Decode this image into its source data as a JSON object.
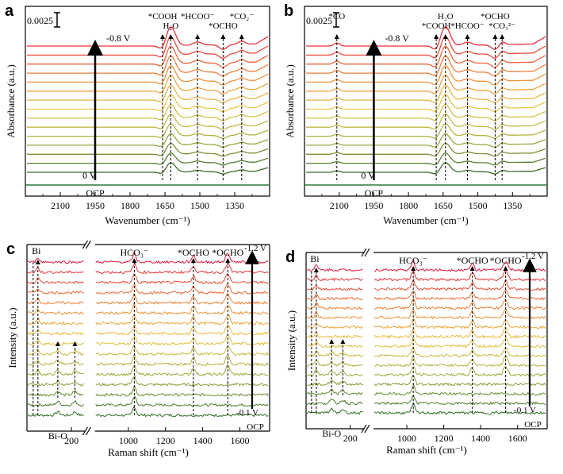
{
  "colors": {
    "ir_top": "#e8303c",
    "ir_bottom": "#3a6b28",
    "raman_top": "#e01c3c",
    "raman_bottom": "#2e6b22",
    "ocp_line": "#2d7a3e",
    "arrow": "#000000"
  },
  "chart_data": [
    {
      "id": "a",
      "panel_label": "a",
      "type": "line",
      "subtype": "stacked spectra",
      "xlabel": "Wavenumber (cm⁻¹)",
      "ylabel": "Absorbance (a.u.)",
      "x_reversed": true,
      "xlim": [
        2250,
        1200
      ],
      "x_ticks": [
        "2100",
        "1950",
        "1800",
        "1650",
        "1500",
        "1350"
      ],
      "scale_bar": "0.0025",
      "n_spectra": 15,
      "top_label": "-0.8 V",
      "bottom_label": "0 V",
      "ocp_label": "OCP",
      "bands": [
        {
          "x": 1660,
          "h": 0.28,
          "w": 14
        },
        {
          "x": 1625,
          "h": 1.0,
          "w": 20
        },
        {
          "x": 1510,
          "h": 0.12,
          "w": 18
        },
        {
          "x": 1400,
          "h": 0.3,
          "w": 16
        },
        {
          "x": 1320,
          "h": 0.12,
          "w": 14
        }
      ],
      "annotations": [
        {
          "text": "*COOH",
          "x": 1660
        },
        {
          "text": "H₂O",
          "x": 1625
        },
        {
          "text": "*HCOO⁻",
          "x": 1510
        },
        {
          "text": "*OCHO",
          "x": 1400
        },
        {
          "text": "*CO₂⁻",
          "x": 1320
        }
      ]
    },
    {
      "id": "b",
      "panel_label": "b",
      "type": "line",
      "subtype": "stacked spectra",
      "xlabel": "Wavenumber (cm⁻¹)",
      "ylabel": "Absorbance (a.u.)",
      "x_reversed": true,
      "xlim": [
        2250,
        1200
      ],
      "x_ticks": [
        "2100",
        "1950",
        "1800",
        "1650",
        "1500",
        "1350"
      ],
      "scale_bar": "0.0025",
      "n_spectra": 15,
      "top_label": "-0.8 V",
      "bottom_label": "0 V",
      "ocp_label": "OCP",
      "bands": [
        {
          "x": 2110,
          "h": 0.05,
          "w": 12
        },
        {
          "x": 1680,
          "h": 0.28,
          "w": 14
        },
        {
          "x": 1640,
          "h": 1.0,
          "w": 20
        },
        {
          "x": 1545,
          "h": 0.12,
          "w": 18
        },
        {
          "x": 1425,
          "h": 0.3,
          "w": 16
        },
        {
          "x": 1395,
          "h": 0.12,
          "w": 12
        }
      ],
      "annotations": [
        {
          "text": "*CO",
          "x": 2110
        },
        {
          "text": "*COOH",
          "x": 1680
        },
        {
          "text": "H₂O",
          "x": 1640
        },
        {
          "text": "*HCOO⁻",
          "x": 1545
        },
        {
          "text": "*OCHO",
          "x": 1425
        },
        {
          "text": "*CO₃²⁻",
          "x": 1395
        }
      ]
    },
    {
      "id": "c",
      "panel_label": "c",
      "type": "line",
      "subtype": "stacked spectra (broken x axis)",
      "xlabel": "Raman shift (cm⁻¹)",
      "ylabel": "Intensity (a.u.)",
      "x_segments": [
        [
          70,
          240
        ],
        [
          820,
          1760
        ]
      ],
      "x_ticks": [
        "200",
        "1000",
        "1200",
        "1400",
        "1600"
      ],
      "n_spectra": 16,
      "top_label": "-1.2 V",
      "bottom_label": "-0.1 V",
      "ocp_label": "OCP",
      "peaks": [
        {
          "x": 102,
          "h": 0.5,
          "w": 4,
          "sets": "top"
        },
        {
          "x": 160,
          "h": 0.35,
          "w": 6,
          "sets": "bottom"
        },
        {
          "x": 210,
          "h": 0.35,
          "w": 6,
          "sets": "bottom"
        },
        {
          "x": 1032,
          "h": 0.9,
          "w": 9,
          "sets": "all"
        },
        {
          "x": 1350,
          "h": 0.7,
          "w": 9,
          "sets": "top"
        },
        {
          "x": 1535,
          "h": 0.9,
          "w": 11,
          "sets": "top"
        }
      ],
      "annotations": [
        {
          "text": "Bi",
          "x": 102
        },
        {
          "text": "HCO₃⁻",
          "x": 1032
        },
        {
          "text": "*OCHO",
          "x": 1350
        },
        {
          "text": "*OCHO",
          "x": 1535
        },
        {
          "text": "Bi-O",
          "x": 160
        }
      ]
    },
    {
      "id": "d",
      "panel_label": "d",
      "type": "line",
      "subtype": "stacked spectra (broken x axis)",
      "xlabel": "Raman shift (cm⁻¹)",
      "ylabel": "Intensity (a.u.)",
      "x_segments": [
        [
          70,
          240
        ],
        [
          820,
          1760
        ]
      ],
      "x_ticks": [
        "200",
        "1000",
        "1200",
        "1400",
        "1600"
      ],
      "n_spectra": 16,
      "top_label": "-1.2 V",
      "bottom_label": "-0.1 V",
      "ocp_label": "OCP",
      "peaks": [
        {
          "x": 100,
          "h": 0.5,
          "w": 4,
          "sets": "top"
        },
        {
          "x": 145,
          "h": 0.35,
          "w": 6,
          "sets": "bottom"
        },
        {
          "x": 178,
          "h": 0.35,
          "w": 6,
          "sets": "bottom"
        },
        {
          "x": 1035,
          "h": 0.9,
          "w": 9,
          "sets": "all"
        },
        {
          "x": 1355,
          "h": 0.7,
          "w": 9,
          "sets": "top"
        },
        {
          "x": 1535,
          "h": 0.9,
          "w": 11,
          "sets": "top"
        }
      ],
      "annotations": [
        {
          "text": "Bi",
          "x": 100
        },
        {
          "text": "HCO₃⁻",
          "x": 1035
        },
        {
          "text": "*OCHO",
          "x": 1355
        },
        {
          "text": "*OCHO",
          "x": 1535
        },
        {
          "text": "Bi-O",
          "x": 145
        }
      ]
    }
  ]
}
